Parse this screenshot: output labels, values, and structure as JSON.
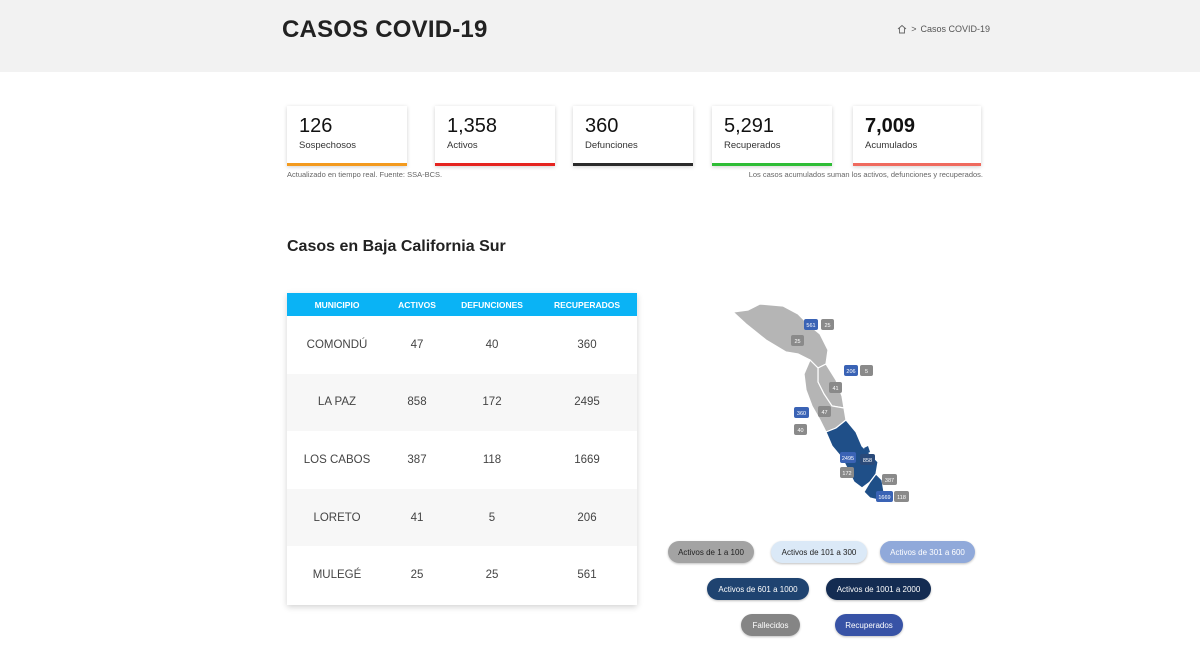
{
  "header": {
    "title": "CASOS COVID-19",
    "breadcrumb_sep": ">",
    "breadcrumb_current": "Casos COVID-19"
  },
  "stats": [
    {
      "value": "126",
      "label": "Sospechosos",
      "color": "#f39a1e"
    },
    {
      "value": "1,358",
      "label": "Activos",
      "color": "#e52420"
    },
    {
      "value": "360",
      "label": "Defunciones",
      "color": "#2a2a2a"
    },
    {
      "value": "5,291",
      "label": "Recuperados",
      "color": "#2fbd36"
    },
    {
      "value": "7,009",
      "label": "Acumulados",
      "color": "#ef6a5e"
    }
  ],
  "notes": {
    "left": "Actualizado en tiempo real. Fuente: SSA-BCS.",
    "right": "Los casos acumulados suman los activos, defunciones y recuperados."
  },
  "section_title": "Casos en Baja California Sur",
  "table": {
    "headers": [
      "MUNICIPIO",
      "ACTIVOS",
      "DEFUNCIONES",
      "RECUPERADOS"
    ],
    "rows": [
      [
        "COMONDÚ",
        "47",
        "40",
        "360"
      ],
      [
        "LA PAZ",
        "858",
        "172",
        "2495"
      ],
      [
        "LOS CABOS",
        "387",
        "118",
        "1669"
      ],
      [
        "LORETO",
        "41",
        "5",
        "206"
      ],
      [
        "MULEGÉ",
        "25",
        "25",
        "561"
      ]
    ]
  },
  "map_badges": {
    "mulege_rec": "561",
    "mulege_def": "25",
    "mulege_act": "25",
    "loreto_rec": "206",
    "loreto_def": "5",
    "loreto_act": "41",
    "comondu_rec": "360",
    "comondu_act": "47",
    "comondu_def": "40",
    "lapaz_rec": "2495",
    "lapaz_act": "858",
    "lapaz_def": "172",
    "loscabos_act": "387",
    "loscabos_rec": "1669",
    "loscabos_def": "118"
  },
  "legend": {
    "r1": "Activos de 1 a 100",
    "r2": "Activos de 101 a 300",
    "r3": "Activos de 301 a 600",
    "r4": "Activos de 601 a 1000",
    "r5": "Activos de 1001 a 2000",
    "fallecidos": "Fallecidos",
    "recuperados": "Recuperados"
  },
  "colors": {
    "accent": "#0ab3f5",
    "gray_badge": "#8a8a8a",
    "blue_badge": "#3a63b5",
    "dark_navy": "#1f3a6b"
  }
}
